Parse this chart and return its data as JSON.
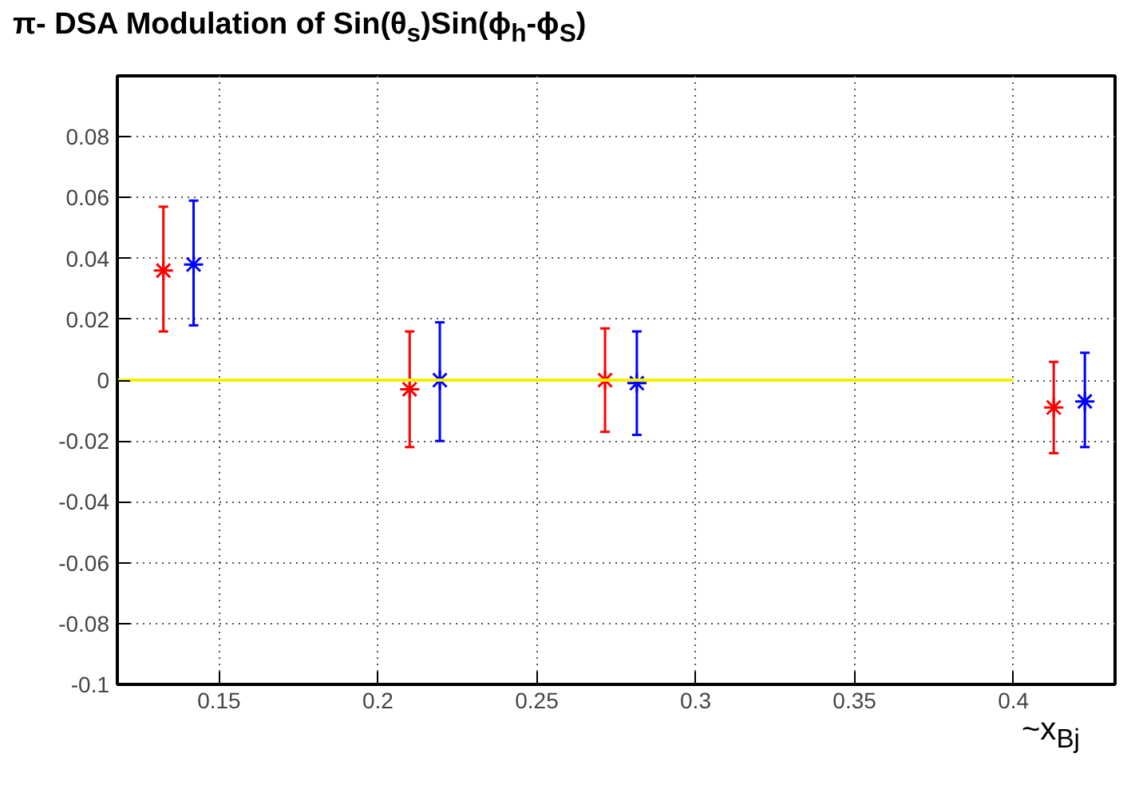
{
  "chart_data": {
    "type": "scatter",
    "title": "π- DSA Modulation of Sin(θ$_{s}$)Sin(ϕ$_{h}$-ϕ$_{S}$)",
    "xlabel": "~x$_{Bj}$",
    "xlim": [
      0.118,
      0.432
    ],
    "ylim": [
      -0.1,
      0.1
    ],
    "xticks": [
      0.15,
      0.2,
      0.25,
      0.3,
      0.35,
      0.4
    ],
    "yticks": [
      -0.1,
      -0.08,
      -0.06,
      -0.04,
      -0.02,
      0,
      0.02,
      0.04,
      0.06,
      0.08
    ],
    "grid": true,
    "marker": "cross",
    "series": [
      {
        "color": "#ff0000",
        "x": [
          0.1325,
          0.21,
          0.2715,
          0.4127
        ],
        "values": [
          0.036,
          -0.003,
          0.0,
          -0.009
        ],
        "errors": [
          [
            0.016,
            0.057
          ],
          [
            -0.022,
            0.016
          ],
          [
            -0.017,
            0.017
          ],
          [
            -0.024,
            0.006
          ]
        ]
      },
      {
        "color": "#0000ff",
        "x": [
          0.142,
          0.2195,
          0.2815,
          0.4225
        ],
        "values": [
          0.038,
          0.0,
          -0.001,
          -0.007
        ],
        "errors": [
          [
            0.018,
            0.059
          ],
          [
            -0.02,
            0.019
          ],
          [
            -0.018,
            0.016
          ],
          [
            -0.022,
            0.009
          ]
        ]
      },
      {
        "type": "line",
        "color": "#f0f000",
        "x": [
          0.118,
          0.4
        ],
        "values": [
          0,
          0
        ],
        "marker": "none"
      }
    ]
  }
}
